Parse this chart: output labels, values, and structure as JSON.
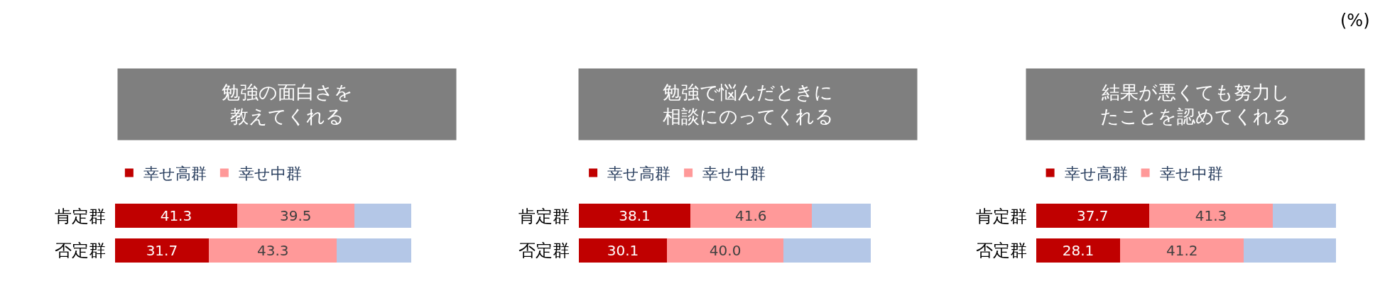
{
  "chart_data": [
    {
      "type": "bar",
      "orientation": "horizontal",
      "stacked": true,
      "title": "勉強の面白さを教えてくれる",
      "categories": [
        "肯定群",
        "否定群"
      ],
      "legend": "top",
      "series": [
        {
          "name": "幸せ高群",
          "color": "#c00000",
          "values": [
            41.3,
            31.7
          ],
          "value_labels": [
            "41.3",
            "31.7"
          ]
        },
        {
          "name": "幸せ中群",
          "color": "#ff9999",
          "values": [
            39.5,
            43.3
          ],
          "value_labels": [
            "39.5",
            "43.3"
          ]
        },
        {
          "color": "#b4c7e7",
          "values": [
            19.2,
            25.0
          ]
        }
      ]
    },
    {
      "type": "bar",
      "orientation": "horizontal",
      "stacked": true,
      "title": "勉強で悩んだときに相談にのってくれる",
      "categories": [
        "肯定群",
        "否定群"
      ],
      "legend": "top",
      "series": [
        {
          "name": "幸せ高群",
          "color": "#c00000",
          "values": [
            38.1,
            30.1
          ],
          "value_labels": [
            "38.1",
            "30.1"
          ]
        },
        {
          "name": "幸せ中群",
          "color": "#ff9999",
          "values": [
            41.6,
            40.0
          ],
          "value_labels": [
            "41.6",
            "40.0"
          ]
        },
        {
          "color": "#b4c7e7",
          "values": [
            20.3,
            29.9
          ]
        }
      ]
    },
    {
      "type": "bar",
      "orientation": "horizontal",
      "stacked": true,
      "title": "結果が悪くても努力したことを認めてくれる",
      "categories": [
        "肯定群",
        "否定群"
      ],
      "legend": "top",
      "annotations": [
        "(%)"
      ],
      "series": [
        {
          "name": "幸せ高群",
          "color": "#c00000",
          "values": [
            37.7,
            28.1
          ],
          "value_labels": [
            "37.7",
            "28.1"
          ]
        },
        {
          "name": "幸せ中群",
          "color": "#ff9999",
          "values": [
            41.3,
            41.2
          ],
          "value_labels": [
            "41.3",
            "41.2"
          ]
        },
        {
          "color": "#b4c7e7",
          "values": [
            21.0,
            30.7
          ]
        }
      ]
    }
  ]
}
